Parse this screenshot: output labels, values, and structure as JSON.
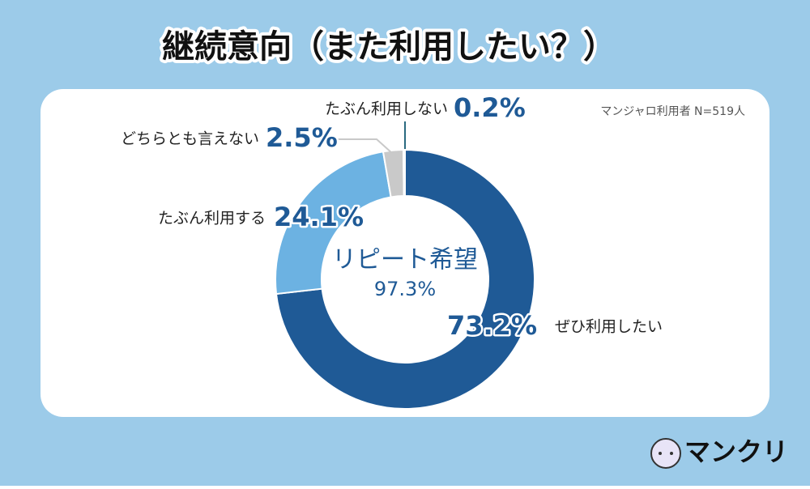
{
  "chart_data": {
    "type": "pie",
    "title": "継続意向（また利用したい？）",
    "note": "マンジャロ利用者 N=519人",
    "categories": [
      "ぜひ利用したい",
      "たぶん利用する",
      "どちらとも言えない",
      "たぶん利用しない"
    ],
    "values": [
      73.2,
      24.1,
      2.5,
      0.2
    ],
    "value_labels": [
      "73.2%",
      "24.1%",
      "2.5%",
      "0.2%"
    ],
    "colors": [
      "#1f5a96",
      "#6cb2e2",
      "#c9c9c9",
      "#2a6a80"
    ],
    "center": {
      "label": "リピート希望",
      "value": 97.3,
      "value_label": "97.3%"
    },
    "logo": "マンクリ"
  }
}
